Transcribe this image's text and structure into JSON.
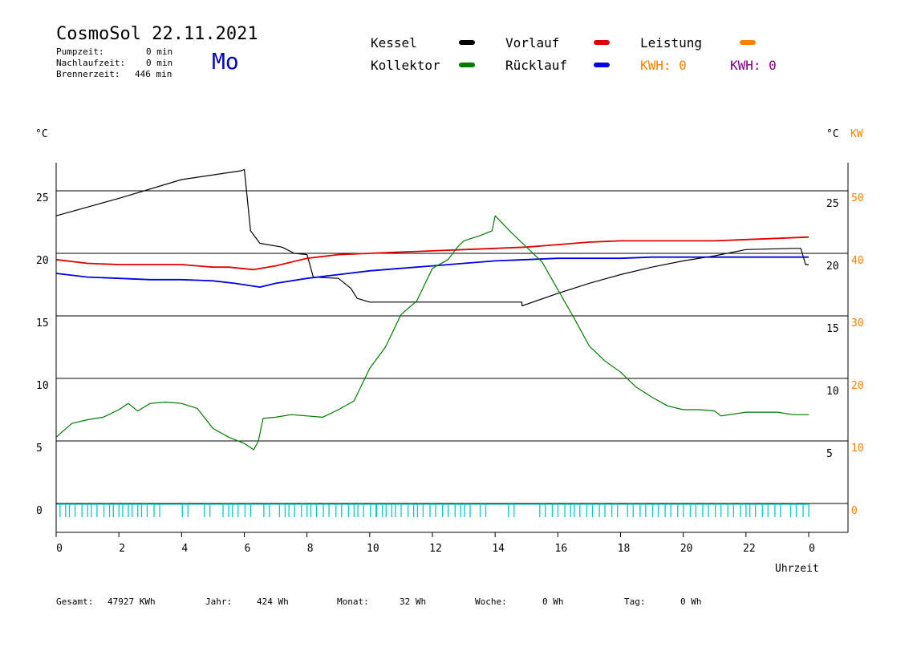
{
  "header": {
    "title": "CosmoSol 22.11.2021",
    "weekday": "Mo",
    "stats": [
      {
        "label": "Pumpzeit:",
        "value": "0 min"
      },
      {
        "label": "Nachlaufzeit:",
        "value": "0 min"
      },
      {
        "label": "Brennerzeit:",
        "value": "446 min"
      }
    ]
  },
  "legend": {
    "items": [
      {
        "label": "Kessel",
        "color": "#000000"
      },
      {
        "label": "Vorlauf",
        "color": "#e00000"
      },
      {
        "label": "Leistung",
        "color": "#ff8000"
      },
      {
        "label": "Kollektor",
        "color": "#007a00"
      },
      {
        "label": "Rücklauf",
        "color": "#0000e0"
      }
    ],
    "kwh_orange": "KWH: 0",
    "kwh_purple": "KWH: 0"
  },
  "axes": {
    "left_unit": "°C",
    "right_unit": "°C",
    "right_unit2": "KW",
    "xlabel": "Uhrzeit"
  },
  "footer": [
    {
      "label": "Gesamt:",
      "value": "47927 KWh"
    },
    {
      "label": "Jahr:",
      "value": "424 Wh"
    },
    {
      "label": "Monat:",
      "value": "32 Wh"
    },
    {
      "label": "Woche:",
      "value": "0 Wh"
    },
    {
      "label": "Tag:",
      "value": "0 Wh"
    }
  ],
  "colors": {
    "kessel": "#000000",
    "vorlauf": "#e00000",
    "ruecklauf": "#0000e0",
    "kollektor": "#007a00",
    "leistung": "#ff8000",
    "pump": "#00cccc",
    "kwh_purple": "#800080",
    "grid": "#000000"
  },
  "chart_data": {
    "type": "line",
    "xlabel": "Uhrzeit",
    "ylabel": "°C",
    "xlim": [
      0,
      24
    ],
    "ylim": [
      0,
      27
    ],
    "x_ticks": [
      "0",
      "2",
      "4",
      "6",
      "8",
      "10",
      "12",
      "14",
      "16",
      "18",
      "20",
      "22",
      "0"
    ],
    "y_ticks_left": [
      0,
      5,
      10,
      15,
      20,
      25
    ],
    "y_ticks_right_temp": [
      5,
      10,
      15,
      20,
      25
    ],
    "y_ticks_right_kw": [
      0,
      10,
      20,
      30,
      40,
      50
    ],
    "grid": true,
    "series": [
      {
        "name": "Kessel",
        "color": "#000000",
        "x": [
          0,
          2,
          4,
          5.9,
          6.0,
          6.05,
          6.2,
          6.5,
          7.2,
          7.6,
          8.0,
          8.2,
          9.0,
          9.4,
          9.6,
          10.0,
          11.0,
          12.0,
          14.0,
          14.85,
          14.86,
          16.0,
          17.0,
          18.0,
          19.0,
          20.0,
          21.0,
          22.0,
          23.5,
          23.75,
          23.9,
          24.0
        ],
        "y": [
          23.0,
          24.4,
          25.9,
          26.6,
          26.7,
          25.5,
          21.8,
          20.8,
          20.5,
          20.0,
          19.9,
          18.1,
          18.0,
          17.2,
          16.4,
          16.1,
          16.1,
          16.1,
          16.1,
          16.1,
          15.8,
          16.8,
          17.6,
          18.3,
          18.9,
          19.4,
          19.8,
          20.3,
          20.4,
          20.4,
          19.1,
          19.1
        ]
      },
      {
        "name": "Vorlauf",
        "color": "#e00000",
        "x": [
          0,
          1,
          2,
          3,
          4,
          5,
          5.5,
          6.3,
          7.0,
          8.0,
          9.0,
          10.0,
          11.0,
          12.0,
          13.0,
          14.0,
          15.0,
          16.0,
          17.0,
          18.0,
          19.0,
          20.0,
          21.0,
          22.0,
          23.0,
          24.0
        ],
        "y": [
          19.5,
          19.2,
          19.1,
          19.1,
          19.1,
          18.9,
          18.9,
          18.7,
          19.0,
          19.6,
          19.9,
          20.0,
          20.1,
          20.2,
          20.3,
          20.4,
          20.5,
          20.7,
          20.9,
          21.0,
          21.0,
          21.0,
          21.0,
          21.1,
          21.2,
          21.3
        ]
      },
      {
        "name": "Rücklauf",
        "color": "#0000e0",
        "x": [
          0,
          1,
          2,
          3,
          4,
          5,
          5.7,
          6.5,
          7.0,
          8.0,
          9.0,
          10.0,
          11.0,
          12.0,
          13.0,
          14.0,
          15.0,
          16.0,
          17.0,
          18.0,
          19.0,
          20.0,
          21.0,
          22.0,
          23.0,
          24.0
        ],
        "y": [
          18.4,
          18.1,
          18.0,
          17.9,
          17.9,
          17.8,
          17.6,
          17.3,
          17.6,
          18.0,
          18.3,
          18.6,
          18.8,
          19.0,
          19.2,
          19.4,
          19.5,
          19.6,
          19.6,
          19.6,
          19.7,
          19.7,
          19.7,
          19.7,
          19.7,
          19.7
        ]
      },
      {
        "name": "Kollektor",
        "color": "#007a00",
        "x": [
          0,
          0.5,
          1.0,
          1.5,
          2.0,
          2.3,
          2.6,
          3.0,
          3.5,
          4.0,
          4.5,
          5.0,
          5.5,
          6.0,
          6.3,
          6.45,
          6.6,
          7.0,
          7.5,
          8.0,
          8.5,
          9.0,
          9.5,
          10.0,
          10.5,
          11.0,
          11.5,
          12.0,
          12.5,
          12.8,
          13.0,
          13.5,
          13.9,
          14.0,
          14.5,
          15.0,
          15.5,
          16.0,
          16.5,
          17.0,
          17.5,
          18.0,
          18.5,
          19.0,
          19.5,
          20.0,
          20.5,
          21.0,
          21.2,
          22.0,
          22.5,
          23.0,
          23.5,
          24.0
        ],
        "y": [
          5.3,
          6.4,
          6.7,
          6.9,
          7.5,
          8.0,
          7.4,
          8.0,
          8.1,
          8.0,
          7.6,
          6.0,
          5.3,
          4.8,
          4.3,
          5.0,
          6.8,
          6.9,
          7.1,
          7.0,
          6.9,
          7.5,
          8.2,
          10.8,
          12.5,
          15.1,
          16.2,
          18.8,
          19.5,
          20.5,
          21.0,
          21.4,
          21.8,
          23.0,
          21.7,
          20.5,
          19.3,
          17.1,
          14.9,
          12.6,
          11.4,
          10.5,
          9.3,
          8.5,
          7.8,
          7.5,
          7.5,
          7.4,
          7.0,
          7.3,
          7.3,
          7.3,
          7.1,
          7.1
        ]
      }
    ],
    "pump_pulses_hours": [
      0.2,
      0.5,
      0.9,
      1.2,
      1.6,
      1.9,
      2.2,
      2.5,
      2.8,
      3.2,
      4.1,
      4.8,
      5.4,
      5.7,
      6.1,
      6.7,
      7.2,
      7.5,
      7.9,
      8.2,
      8.6,
      9.0,
      9.4,
      9.7,
      10.1,
      10.3,
      10.6,
      10.9,
      11.3,
      11.6,
      12.0,
      12.4,
      12.8,
      13.1,
      13.6,
      14.5,
      15.5,
      15.9,
      16.3,
      16.6,
      17.0,
      17.4,
      17.8,
      18.3,
      18.7,
      19.1,
      19.5,
      19.9,
      20.3,
      20.7,
      21.1,
      21.5,
      21.9,
      22.2,
      22.6,
      23.0,
      23.5,
      23.9
    ]
  }
}
